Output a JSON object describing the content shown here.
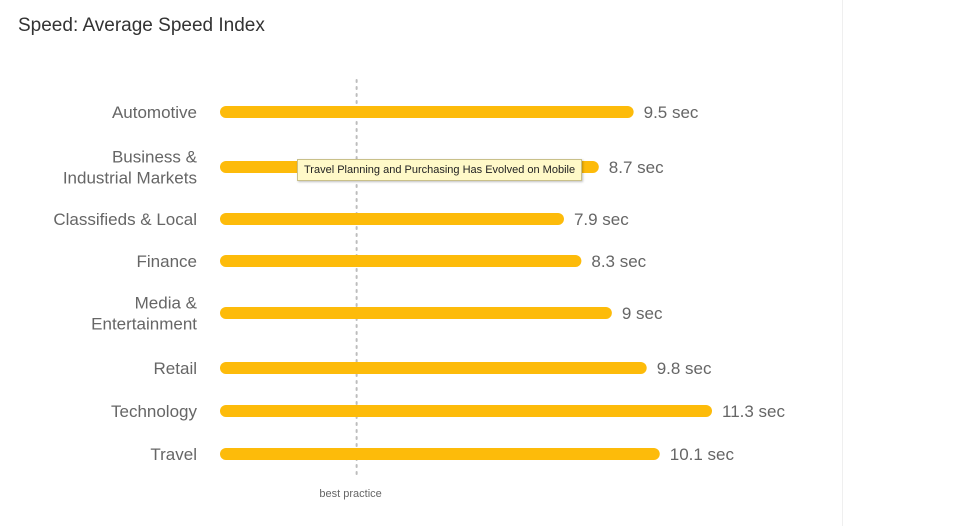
{
  "title": "Speed: Average Speed Index",
  "tooltip": "Travel Planning and Purchasing Has Evolved on Mobile",
  "colors": {
    "bar": "#FDBB0A",
    "reference_line": "#bdbdbd",
    "text": "#666666"
  },
  "chart_data": {
    "type": "bar",
    "orientation": "horizontal",
    "title": "Speed: Average Speed Index",
    "categories": [
      [
        "Automotive"
      ],
      [
        "Business &",
        "Industrial Markets"
      ],
      [
        "Classifieds & Local"
      ],
      [
        "Finance"
      ],
      [
        "Media &",
        "Entertainment"
      ],
      [
        "Retail"
      ],
      [
        "Technology"
      ],
      [
        "Travel"
      ]
    ],
    "values": [
      9.5,
      8.7,
      7.9,
      8.3,
      9,
      9.8,
      11.3,
      10.1
    ],
    "value_labels": [
      "9.5 sec",
      "8.7 sec",
      "7.9 sec",
      "8.3 sec",
      "9 sec",
      "9.8 sec",
      "11.3 sec",
      "10.1 sec"
    ],
    "unit": "sec",
    "xlim": [
      0,
      11.3
    ],
    "grid": false,
    "reference_line": {
      "value": 3,
      "label": "best practice"
    }
  }
}
